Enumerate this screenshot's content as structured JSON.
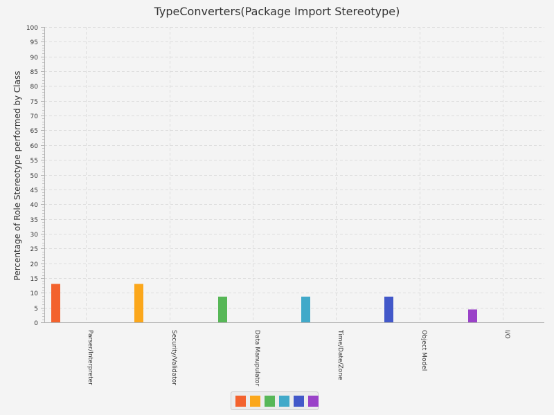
{
  "chart_data": {
    "type": "bar",
    "title": "TypeConverters(Package Import Stereotype)",
    "xlabel": "",
    "ylabel": "Percentage of Role Stereotype performed by Class",
    "ylim": [
      0,
      100
    ],
    "ytick_step": 5,
    "grid": true,
    "legend_position": "bottom",
    "categories": [
      "Parser/Interpreter",
      "Security/Validator",
      "Data Manupulator",
      "Time/Date/Zone",
      "Object Model",
      "I/O"
    ],
    "values": [
      13.0,
      13.0,
      8.7,
      8.7,
      8.7,
      4.35
    ],
    "colors": [
      "#f3622d",
      "#fba71b",
      "#57b757",
      "#41a9c9",
      "#4258c9",
      "#9a42c8"
    ]
  }
}
